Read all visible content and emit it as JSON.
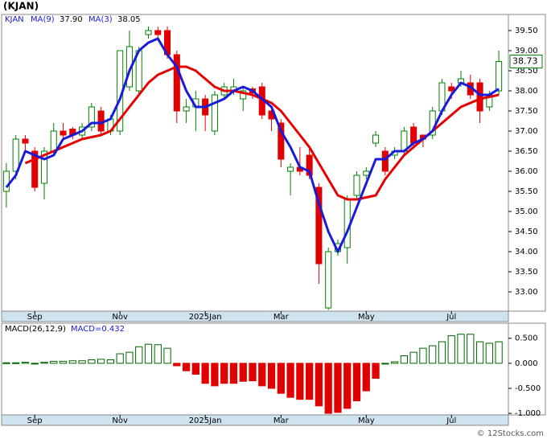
{
  "chart_data": [
    {
      "type": "candlestick",
      "title": "(KJAN)",
      "symbol": "KJAN",
      "open": [
        35.5,
        36.0,
        36.8,
        36.5,
        35.7,
        36.5,
        37.0,
        37.05,
        36.9,
        37.1,
        37.5,
        37.0,
        37.0,
        38.1,
        38.0,
        39.4,
        39.5,
        39.5,
        38.9,
        37.5,
        37.6,
        37.8,
        37.0,
        37.9,
        38.0,
        37.8,
        38.05,
        38.1,
        37.5,
        37.2,
        36.0,
        36.1,
        36.4,
        35.6,
        32.6,
        34.0,
        34.1,
        35.4,
        35.9,
        36.7,
        36.5,
        36.4,
        36.5,
        37.1,
        36.9,
        36.9,
        37.5,
        38.1,
        38.2,
        38.2,
        38.2,
        37.6,
        38.0
      ],
      "high": [
        36.2,
        36.9,
        36.9,
        36.6,
        36.6,
        37.2,
        37.2,
        37.1,
        37.2,
        37.7,
        37.6,
        37.4,
        39.0,
        39.5,
        39.1,
        39.6,
        39.6,
        39.6,
        39.0,
        37.8,
        38.0,
        37.9,
        38.0,
        38.2,
        38.3,
        38.1,
        38.1,
        38.2,
        37.6,
        37.3,
        36.2,
        36.6,
        36.6,
        35.7,
        34.1,
        34.3,
        35.4,
        36.0,
        36.1,
        37.0,
        36.6,
        36.6,
        37.1,
        37.2,
        36.9,
        37.6,
        38.3,
        38.2,
        38.5,
        38.4,
        38.3,
        38.0,
        39.0
      ],
      "low": [
        35.1,
        35.8,
        36.5,
        35.5,
        35.3,
        36.4,
        36.8,
        36.8,
        36.8,
        37.0,
        36.9,
        36.9,
        36.9,
        38.0,
        37.9,
        39.3,
        39.3,
        38.8,
        37.2,
        37.2,
        37.0,
        37.0,
        36.9,
        37.8,
        37.9,
        37.5,
        37.8,
        37.3,
        37.0,
        36.1,
        35.4,
        35.9,
        35.8,
        33.2,
        32.55,
        33.9,
        33.7,
        35.3,
        35.8,
        36.6,
        35.9,
        36.3,
        36.4,
        36.6,
        36.6,
        36.8,
        37.4,
        37.8,
        38.1,
        37.8,
        37.2,
        37.5,
        37.9
      ],
      "close": [
        36.0,
        36.8,
        36.7,
        35.6,
        36.5,
        37.0,
        36.9,
        36.9,
        37.1,
        37.6,
        37.0,
        37.3,
        39.0,
        39.1,
        39.0,
        39.5,
        39.4,
        38.9,
        37.5,
        37.6,
        37.8,
        37.4,
        37.9,
        38.1,
        38.1,
        38.0,
        37.95,
        37.4,
        37.3,
        36.3,
        36.1,
        36.0,
        35.9,
        33.7,
        34.0,
        34.2,
        35.3,
        35.9,
        36.0,
        36.9,
        36.0,
        36.5,
        37.0,
        36.7,
        36.8,
        37.5,
        38.2,
        38.0,
        38.3,
        37.9,
        37.5,
        37.9,
        38.73
      ],
      "up_color": "#008000",
      "down_color": "#e00000",
      "series": [
        {
          "name": "MA(9)",
          "last_label": "37.90",
          "color": "#e60000",
          "values": [
            null,
            null,
            36.2,
            36.3,
            36.4,
            36.5,
            36.6,
            36.7,
            36.8,
            36.85,
            36.9,
            37.0,
            37.3,
            37.6,
            37.9,
            38.2,
            38.4,
            38.5,
            38.6,
            38.6,
            38.5,
            38.3,
            38.1,
            38.0,
            38.0,
            37.95,
            37.9,
            37.8,
            37.7,
            37.5,
            37.2,
            36.9,
            36.6,
            36.2,
            35.8,
            35.4,
            35.3,
            35.3,
            35.35,
            35.4,
            35.8,
            36.1,
            36.4,
            36.6,
            36.8,
            37.0,
            37.2,
            37.4,
            37.6,
            37.7,
            37.8,
            37.85,
            37.9
          ]
        },
        {
          "name": "MA(3)",
          "last_label": "38.05",
          "color": "#1a1adc",
          "values": [
            35.6,
            35.9,
            36.5,
            36.4,
            36.3,
            36.4,
            36.8,
            36.9,
            37.0,
            37.2,
            37.2,
            37.3,
            37.8,
            38.5,
            39.0,
            39.2,
            39.3,
            38.9,
            38.6,
            38.0,
            37.6,
            37.6,
            37.7,
            37.8,
            38.0,
            38.1,
            38.0,
            37.8,
            37.6,
            37.0,
            36.6,
            36.1,
            36.0,
            35.2,
            34.5,
            34.0,
            34.5,
            35.1,
            35.7,
            36.3,
            36.3,
            36.5,
            36.5,
            36.7,
            36.8,
            37.0,
            37.5,
            37.9,
            38.2,
            38.1,
            37.9,
            37.9,
            38.05
          ]
        }
      ],
      "ylim": [
        32.52,
        39.9
      ],
      "yticks": [
        {
          "value": 33,
          "label": "33.00"
        },
        {
          "value": 33.5,
          "label": "33.50"
        },
        {
          "value": 34,
          "label": "34.00"
        },
        {
          "value": 34.5,
          "label": "34.50"
        },
        {
          "value": 35,
          "label": "35.00"
        },
        {
          "value": 35.5,
          "label": "35.50"
        },
        {
          "value": 36,
          "label": "36.00"
        },
        {
          "value": 36.5,
          "label": "36.50"
        },
        {
          "value": 37,
          "label": "37.00"
        },
        {
          "value": 37.5,
          "label": "37.50"
        },
        {
          "value": 38,
          "label": "38.00"
        },
        {
          "value": 38.5,
          "label": "38.50"
        },
        {
          "value": 39,
          "label": "39.00"
        },
        {
          "value": 39.5,
          "label": "39.50"
        }
      ],
      "xticks": [
        {
          "value": 3,
          "label": "Sep"
        },
        {
          "value": 12,
          "label": "Nov"
        },
        {
          "value": 21,
          "label": "2025Jan"
        },
        {
          "value": 29,
          "label": "Mar"
        },
        {
          "value": 38,
          "label": "May"
        },
        {
          "value": 47,
          "label": "Jul"
        }
      ]
    },
    {
      "type": "bar",
      "title": "MACD(26,12,9)",
      "current_label": "MACD=0.432",
      "values": [
        0.01,
        0.01,
        0.02,
        0.0,
        0.02,
        0.04,
        0.04,
        0.05,
        0.05,
        0.07,
        0.08,
        0.07,
        0.19,
        0.22,
        0.33,
        0.38,
        0.37,
        0.3,
        -0.05,
        -0.15,
        -0.22,
        -0.4,
        -0.45,
        -0.4,
        -0.4,
        -0.36,
        -0.35,
        -0.45,
        -0.5,
        -0.6,
        -0.68,
        -0.72,
        -0.72,
        -0.85,
        -1.0,
        -0.98,
        -0.9,
        -0.75,
        -0.55,
        -0.3,
        0.0,
        0.03,
        0.15,
        0.22,
        0.3,
        0.35,
        0.43,
        0.55,
        0.58,
        0.58,
        0.43,
        0.4,
        0.43
      ],
      "up_color": "#006400",
      "down_color": "#e00000",
      "ylim": [
        -1.03,
        0.8
      ],
      "yticks": [
        {
          "value": 0.5,
          "label": "0.500"
        },
        {
          "value": 0,
          "label": "0.000"
        },
        {
          "value": -0.5,
          "label": "-0.500"
        },
        {
          "value": -1,
          "label": "-1.000"
        }
      ],
      "xticks": [
        {
          "value": 3,
          "label": "Sep"
        },
        {
          "value": 12,
          "label": "Nov"
        },
        {
          "value": 21,
          "label": "2025Jan"
        },
        {
          "value": 29,
          "label": "Mar"
        },
        {
          "value": 38,
          "label": "May"
        },
        {
          "value": 47,
          "label": "Jul"
        }
      ]
    }
  ],
  "footer": "© 12Stocks.com"
}
